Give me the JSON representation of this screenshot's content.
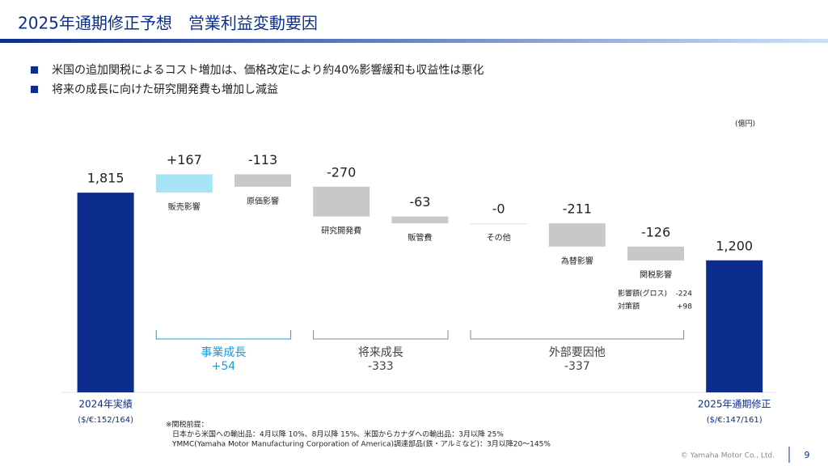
{
  "header": {
    "title": "2025年通期修正予想　営業利益変動要因",
    "bullets": [
      "米国の追加関税によるコスト増加は、価格改定により約40%影響緩和も収益性は悪化",
      "将来の成長に向けた研究開発費も増加し減益"
    ]
  },
  "chart_data": {
    "type": "waterfall",
    "unit": "(億円)",
    "categories": [
      "2024年実績",
      "販売影響",
      "原価影響",
      "研究開発費",
      "販管費",
      "その他",
      "為替影響",
      "関税影響",
      "2025年通期修正"
    ],
    "category_notes": [
      "($/€:152/164)",
      null,
      null,
      null,
      null,
      null,
      null,
      null,
      "($/€:147/161)"
    ],
    "totals": [
      true,
      false,
      false,
      false,
      false,
      false,
      false,
      false,
      true
    ],
    "values": [
      1815,
      167,
      -113,
      -270,
      -63,
      0,
      -211,
      -126,
      1200
    ],
    "value_labels": [
      "1,815",
      "+167",
      "-113",
      "-270",
      "-63",
      "-0",
      "-211",
      "-126",
      "1,200"
    ],
    "colors": {
      "total": "#0d2d8c",
      "increase": "#a8e4f8",
      "decrease": "#c8c8c8",
      "zero": "#dddddd"
    },
    "ylim": [
      0,
      2000
    ],
    "groups": [
      {
        "name": "事業成長",
        "label": "+54",
        "members": [
          "販売影響",
          "原価影響"
        ],
        "color": "#1a9bd7"
      },
      {
        "name": "将来成長",
        "label": "-333",
        "members": [
          "研究開発費",
          "販管費"
        ],
        "color": "#444444"
      },
      {
        "name": "外部要因他",
        "label": "-337",
        "members": [
          "その他",
          "為替影響",
          "関税影響"
        ],
        "color": "#444444"
      }
    ],
    "annotations": [
      {
        "label": "影響額(グロス)",
        "value": "-224"
      },
      {
        "label": "対策額",
        "value": "+98"
      }
    ]
  },
  "footnote": [
    "※関税前提：",
    "日本から米国への輸出品：4月以降 10%、8月以降 15%、米国からカナダへの輸出品：3月以降 25%",
    "YMMC(Yamaha Motor Manufacturing Corporation of America)調達部品(鉄・アルミなど)：3月以降20～145%"
  ],
  "footer": {
    "copyright": "© Yamaha Motor Co., Ltd.",
    "page": "9"
  }
}
